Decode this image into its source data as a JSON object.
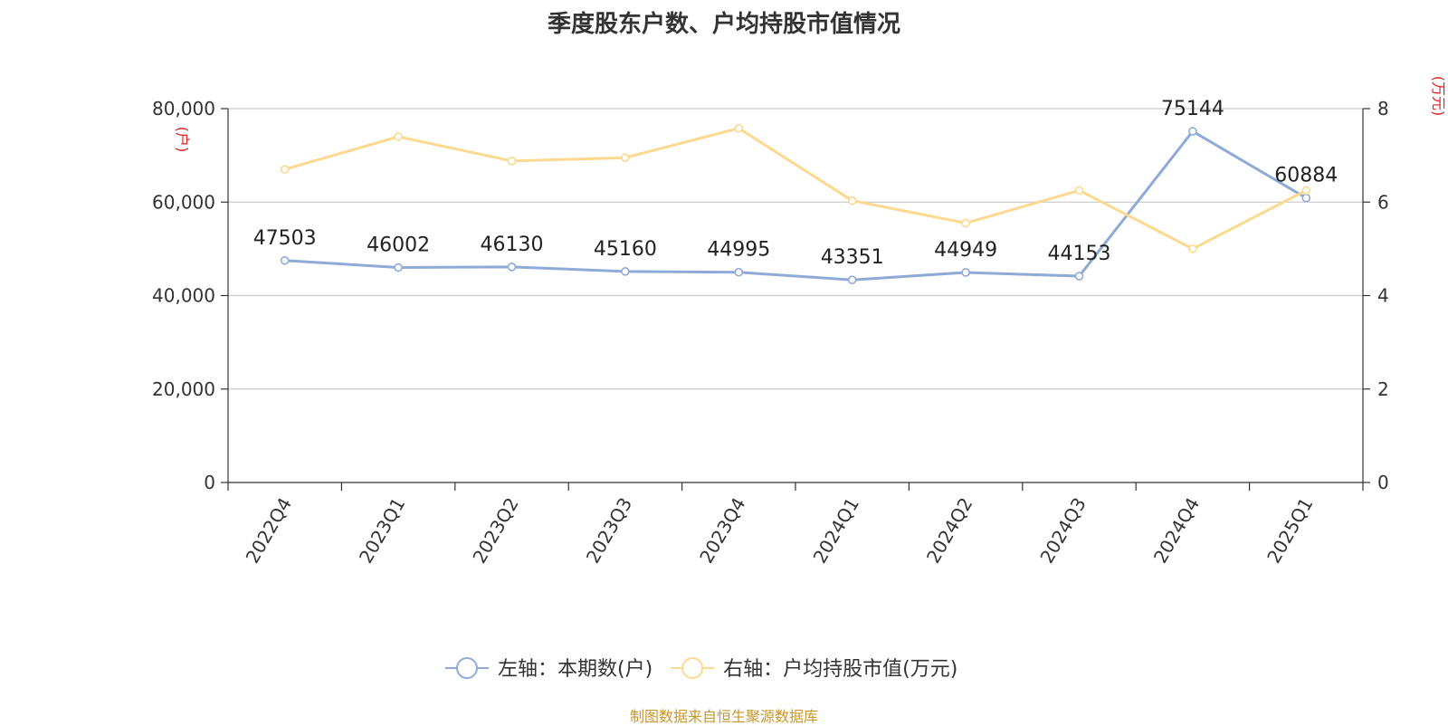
{
  "title": "季度股东户数、户均持股市值情况",
  "source": "制图数据来自恒生聚源数据库",
  "chart_data": {
    "type": "line",
    "categories": [
      "2022Q4",
      "2023Q1",
      "2023Q2",
      "2023Q3",
      "2023Q4",
      "2024Q1",
      "2024Q2",
      "2024Q3",
      "2024Q4",
      "2025Q1"
    ],
    "series": [
      {
        "name": "左轴：本期数(户)",
        "axis": "left",
        "color": "#8eaad6",
        "values": [
          47503,
          46002,
          46130,
          45160,
          44995,
          43351,
          44949,
          44153,
          75144,
          60884
        ],
        "show_labels": true
      },
      {
        "name": "右轴：户均持股市值(万元)",
        "axis": "right",
        "color": "#fcd98e",
        "values": [
          6.7,
          7.4,
          6.88,
          6.95,
          7.58,
          6.03,
          5.55,
          6.25,
          5.0,
          6.25
        ],
        "show_labels": false
      }
    ],
    "left_axis": {
      "unit": "(户)",
      "ylim": [
        0,
        80000
      ],
      "ticks": [
        0,
        20000,
        40000,
        60000,
        80000
      ],
      "tick_labels": [
        "0",
        "20,000",
        "40,000",
        "60,000",
        "80,000"
      ]
    },
    "right_axis": {
      "unit": "(万元)",
      "ylim": [
        0,
        8
      ],
      "ticks": [
        0,
        2,
        4,
        6,
        8
      ],
      "tick_labels": [
        "0",
        "2",
        "4",
        "6",
        "8"
      ]
    },
    "grid": true,
    "legend": "bottom-center"
  }
}
